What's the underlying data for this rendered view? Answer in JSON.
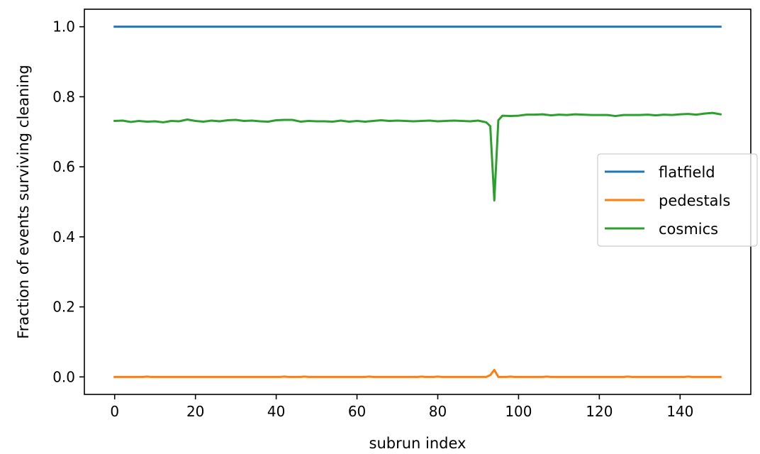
{
  "chart_data": {
    "type": "line",
    "xlabel": "subrun index",
    "ylabel": "Fraction of events surviving cleaning",
    "xlim": [
      -7.5,
      157.5
    ],
    "ylim": [
      -0.05,
      1.05
    ],
    "xticks": [
      0,
      20,
      40,
      60,
      80,
      100,
      120,
      140
    ],
    "yticks": [
      0.0,
      0.2,
      0.4,
      0.6,
      0.8,
      1.0
    ],
    "xtick_labels": [
      "0",
      "20",
      "40",
      "60",
      "80",
      "100",
      "120",
      "140"
    ],
    "ytick_labels": [
      "0.0",
      "0.2",
      "0.4",
      "0.6",
      "0.8",
      "1.0"
    ],
    "grid": false,
    "legend_position": "center-right",
    "series": [
      {
        "name": "flatfield",
        "color": "#1f77b4",
        "points": [
          [
            0,
            1.0
          ],
          [
            150,
            1.0
          ]
        ]
      },
      {
        "name": "pedestals",
        "color": "#ff7f0e",
        "points": [
          [
            0,
            0.0
          ],
          [
            7,
            0.0
          ],
          [
            8,
            0.001
          ],
          [
            9,
            0.0
          ],
          [
            41,
            0.0
          ],
          [
            42,
            0.001
          ],
          [
            43,
            0.0
          ],
          [
            46,
            0.0
          ],
          [
            47,
            0.001
          ],
          [
            48,
            0.0
          ],
          [
            62,
            0.0
          ],
          [
            63,
            0.001
          ],
          [
            64,
            0.0
          ],
          [
            75,
            0.0
          ],
          [
            76,
            0.001
          ],
          [
            77,
            0.0
          ],
          [
            79,
            0.0
          ],
          [
            80,
            0.001
          ],
          [
            81,
            0.0
          ],
          [
            92,
            0.0
          ],
          [
            93,
            0.005
          ],
          [
            94,
            0.02
          ],
          [
            95,
            0.0
          ],
          [
            97,
            0.0
          ],
          [
            98,
            0.001
          ],
          [
            99,
            0.0
          ],
          [
            106,
            0.0
          ],
          [
            107,
            0.001
          ],
          [
            108,
            0.0
          ],
          [
            126,
            0.0
          ],
          [
            127,
            0.001
          ],
          [
            128,
            0.0
          ],
          [
            141,
            0.0
          ],
          [
            142,
            0.001
          ],
          [
            143,
            0.0
          ],
          [
            150,
            0.0
          ]
        ]
      },
      {
        "name": "cosmics",
        "color": "#2ca02c",
        "points": [
          [
            0,
            0.731
          ],
          [
            2,
            0.732
          ],
          [
            4,
            0.728
          ],
          [
            6,
            0.731
          ],
          [
            8,
            0.729
          ],
          [
            10,
            0.73
          ],
          [
            12,
            0.727
          ],
          [
            14,
            0.731
          ],
          [
            16,
            0.73
          ],
          [
            18,
            0.735
          ],
          [
            20,
            0.731
          ],
          [
            22,
            0.729
          ],
          [
            24,
            0.732
          ],
          [
            26,
            0.73
          ],
          [
            28,
            0.733
          ],
          [
            30,
            0.734
          ],
          [
            32,
            0.731
          ],
          [
            34,
            0.732
          ],
          [
            36,
            0.73
          ],
          [
            38,
            0.729
          ],
          [
            40,
            0.733
          ],
          [
            42,
            0.734
          ],
          [
            44,
            0.734
          ],
          [
            46,
            0.729
          ],
          [
            48,
            0.731
          ],
          [
            50,
            0.73
          ],
          [
            52,
            0.73
          ],
          [
            54,
            0.729
          ],
          [
            56,
            0.732
          ],
          [
            58,
            0.729
          ],
          [
            60,
            0.731
          ],
          [
            62,
            0.729
          ],
          [
            64,
            0.731
          ],
          [
            66,
            0.733
          ],
          [
            68,
            0.731
          ],
          [
            70,
            0.732
          ],
          [
            72,
            0.731
          ],
          [
            74,
            0.73
          ],
          [
            76,
            0.731
          ],
          [
            78,
            0.732
          ],
          [
            80,
            0.73
          ],
          [
            82,
            0.731
          ],
          [
            84,
            0.732
          ],
          [
            86,
            0.731
          ],
          [
            88,
            0.73
          ],
          [
            90,
            0.732
          ],
          [
            92,
            0.727
          ],
          [
            93,
            0.716
          ],
          [
            94,
            0.504
          ],
          [
            95,
            0.733
          ],
          [
            96,
            0.746
          ],
          [
            98,
            0.745
          ],
          [
            100,
            0.746
          ],
          [
            102,
            0.749
          ],
          [
            104,
            0.749
          ],
          [
            106,
            0.75
          ],
          [
            108,
            0.747
          ],
          [
            110,
            0.749
          ],
          [
            112,
            0.748
          ],
          [
            114,
            0.75
          ],
          [
            116,
            0.749
          ],
          [
            118,
            0.748
          ],
          [
            120,
            0.748
          ],
          [
            122,
            0.748
          ],
          [
            124,
            0.745
          ],
          [
            126,
            0.748
          ],
          [
            128,
            0.748
          ],
          [
            130,
            0.748
          ],
          [
            132,
            0.749
          ],
          [
            134,
            0.747
          ],
          [
            136,
            0.749
          ],
          [
            138,
            0.748
          ],
          [
            140,
            0.75
          ],
          [
            142,
            0.751
          ],
          [
            144,
            0.749
          ],
          [
            146,
            0.752
          ],
          [
            148,
            0.754
          ],
          [
            150,
            0.75
          ]
        ]
      }
    ]
  }
}
